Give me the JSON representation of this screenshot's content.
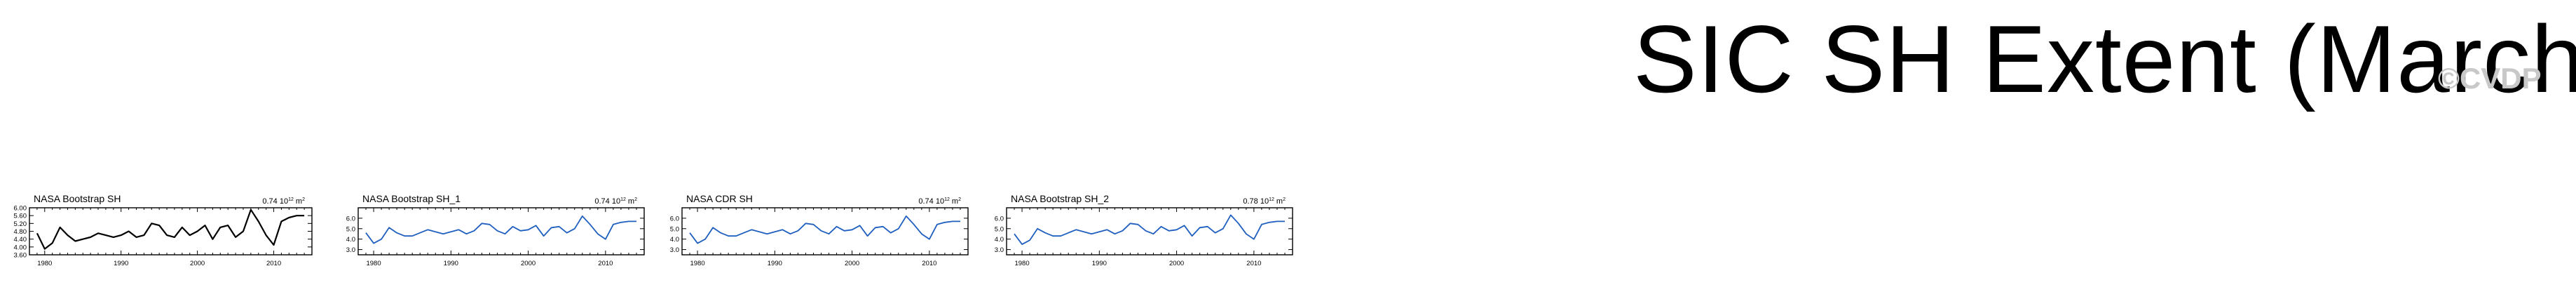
{
  "title": "SIC SH Extent (March)",
  "watermark": "©CVDP",
  "colors": {
    "black_series": "#000000",
    "blue_series": "#1f5fbf",
    "watermark": "#c8c8c8"
  },
  "chart_data": [
    {
      "type": "line",
      "title": "NASA Bootstrap SH",
      "scale_label": "0.74 10",
      "scale_exponent": "12",
      "scale_unit": "m",
      "scale_unit_exponent": "2",
      "line_color": "#000000",
      "xlim": [
        1978,
        2015
      ],
      "ylim": [
        3.6,
        6.0
      ],
      "xticks": [
        1980,
        1990,
        2000,
        2010
      ],
      "yticks": [
        "6.00",
        "5.60",
        "5.20",
        "4.80",
        "4.40",
        "4.00",
        "3.60"
      ],
      "series": [
        {
          "x": [
            1979,
            1980,
            1981,
            1982,
            1983,
            1984,
            1985,
            1986,
            1987,
            1988,
            1989,
            1990,
            1991,
            1992,
            1993,
            1994,
            1995,
            1996,
            1997,
            1998,
            1999,
            2000,
            2001,
            2002,
            2003,
            2004,
            2005,
            2006,
            2007,
            2008,
            2009,
            2010,
            2011,
            2012,
            2013,
            2014
          ],
          "values": [
            4.7,
            3.9,
            4.2,
            5.0,
            4.6,
            4.3,
            4.4,
            4.5,
            4.7,
            4.6,
            4.5,
            4.6,
            4.8,
            4.5,
            4.6,
            5.2,
            5.1,
            4.6,
            4.5,
            5.0,
            4.6,
            4.8,
            5.1,
            4.4,
            5.0,
            5.1,
            4.5,
            4.8,
            5.9,
            5.3,
            4.6,
            4.1,
            5.3,
            5.5,
            5.6,
            5.6
          ]
        }
      ]
    },
    {
      "type": "line",
      "title": "NASA Bootstrap SH_1",
      "scale_label": "0.74 10",
      "scale_exponent": "12",
      "scale_unit": "m",
      "scale_unit_exponent": "2",
      "line_color": "#1f5fbf",
      "xlim": [
        1978,
        2015
      ],
      "ylim": [
        2.5,
        7.0
      ],
      "xticks": [
        1980,
        1990,
        2000,
        2010
      ],
      "yticks": [
        "6.0",
        "5.0",
        "4.0",
        "3.0"
      ],
      "series": [
        {
          "x": [
            1979,
            1980,
            1981,
            1982,
            1983,
            1984,
            1985,
            1986,
            1987,
            1988,
            1989,
            1990,
            1991,
            1992,
            1993,
            1994,
            1995,
            1996,
            1997,
            1998,
            1999,
            2000,
            2001,
            2002,
            2003,
            2004,
            2005,
            2006,
            2007,
            2008,
            2009,
            2010,
            2011,
            2012,
            2013,
            2014
          ],
          "values": [
            4.6,
            3.6,
            4.0,
            5.1,
            4.6,
            4.3,
            4.3,
            4.6,
            4.9,
            4.7,
            4.5,
            4.7,
            4.9,
            4.5,
            4.8,
            5.5,
            5.4,
            4.8,
            4.5,
            5.2,
            4.8,
            4.9,
            5.3,
            4.3,
            5.1,
            5.2,
            4.6,
            5.0,
            6.2,
            5.4,
            4.5,
            4.0,
            5.4,
            5.6,
            5.7,
            5.7
          ]
        }
      ]
    },
    {
      "type": "line",
      "title": "NASA CDR SH",
      "scale_label": "0.74 10",
      "scale_exponent": "12",
      "scale_unit": "m",
      "scale_unit_exponent": "2",
      "line_color": "#1f5fbf",
      "xlim": [
        1978,
        2015
      ],
      "ylim": [
        2.5,
        7.0
      ],
      "xticks": [
        1980,
        1990,
        2000,
        2010
      ],
      "yticks": [
        "6.0",
        "5.0",
        "4.0",
        "3.0"
      ],
      "series": [
        {
          "x": [
            1979,
            1980,
            1981,
            1982,
            1983,
            1984,
            1985,
            1986,
            1987,
            1988,
            1989,
            1990,
            1991,
            1992,
            1993,
            1994,
            1995,
            1996,
            1997,
            1998,
            1999,
            2000,
            2001,
            2002,
            2003,
            2004,
            2005,
            2006,
            2007,
            2008,
            2009,
            2010,
            2011,
            2012,
            2013,
            2014
          ],
          "values": [
            4.6,
            3.6,
            4.0,
            5.1,
            4.6,
            4.3,
            4.3,
            4.6,
            4.9,
            4.7,
            4.5,
            4.7,
            4.9,
            4.5,
            4.8,
            5.5,
            5.4,
            4.8,
            4.5,
            5.2,
            4.8,
            4.9,
            5.3,
            4.3,
            5.1,
            5.2,
            4.6,
            5.0,
            6.2,
            5.4,
            4.5,
            4.0,
            5.4,
            5.6,
            5.7,
            5.7
          ]
        }
      ]
    },
    {
      "type": "line",
      "title": "NASA Bootstrap SH_2",
      "scale_label": "0.78 10",
      "scale_exponent": "12",
      "scale_unit": "m",
      "scale_unit_exponent": "2",
      "line_color": "#1f5fbf",
      "xlim": [
        1978,
        2015
      ],
      "ylim": [
        2.5,
        7.0
      ],
      "xticks": [
        1980,
        1990,
        2000,
        2010
      ],
      "yticks": [
        "6.0",
        "5.0",
        "4.0",
        "3.0"
      ],
      "series": [
        {
          "x": [
            1979,
            1980,
            1981,
            1982,
            1983,
            1984,
            1985,
            1986,
            1987,
            1988,
            1989,
            1990,
            1991,
            1992,
            1993,
            1994,
            1995,
            1996,
            1997,
            1998,
            1999,
            2000,
            2001,
            2002,
            2003,
            2004,
            2005,
            2006,
            2007,
            2008,
            2009,
            2010,
            2011,
            2012,
            2013,
            2014
          ],
          "values": [
            4.5,
            3.5,
            3.9,
            5.0,
            4.6,
            4.3,
            4.3,
            4.6,
            4.9,
            4.7,
            4.5,
            4.7,
            4.9,
            4.5,
            4.8,
            5.5,
            5.4,
            4.8,
            4.5,
            5.2,
            4.8,
            4.9,
            5.3,
            4.3,
            5.1,
            5.2,
            4.6,
            5.0,
            6.3,
            5.5,
            4.5,
            4.0,
            5.4,
            5.6,
            5.7,
            5.7
          ]
        }
      ]
    }
  ]
}
